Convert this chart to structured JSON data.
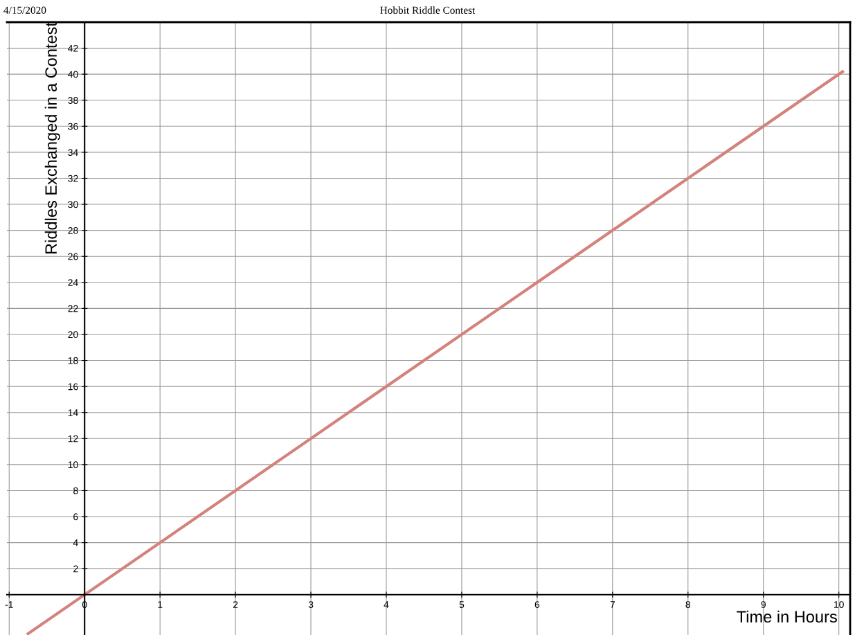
{
  "chart_data": {
    "type": "line",
    "title": "Hobbit Riddle Contest",
    "xlabel": "Time in Hours",
    "ylabel": "Riddles Exchanged in a Contest",
    "annotations": [
      "4/15/2020"
    ],
    "x": [
      -0.75,
      10.05
    ],
    "series": [
      {
        "color": "#d4827c",
        "values": [
          -3,
          40.2
        ]
      }
    ],
    "xlim": [
      -1.03,
      10.15
    ],
    "ylim": [
      -3.1,
      44
    ],
    "xticks": [
      -1,
      0,
      1,
      2,
      3,
      4,
      5,
      6,
      7,
      8,
      9,
      10
    ],
    "yticks": [
      2,
      4,
      6,
      8,
      10,
      12,
      14,
      16,
      18,
      20,
      22,
      24,
      26,
      28,
      30,
      32,
      34,
      36,
      38,
      40,
      42
    ],
    "grid": true,
    "marker": "none",
    "line_style": "solid"
  }
}
